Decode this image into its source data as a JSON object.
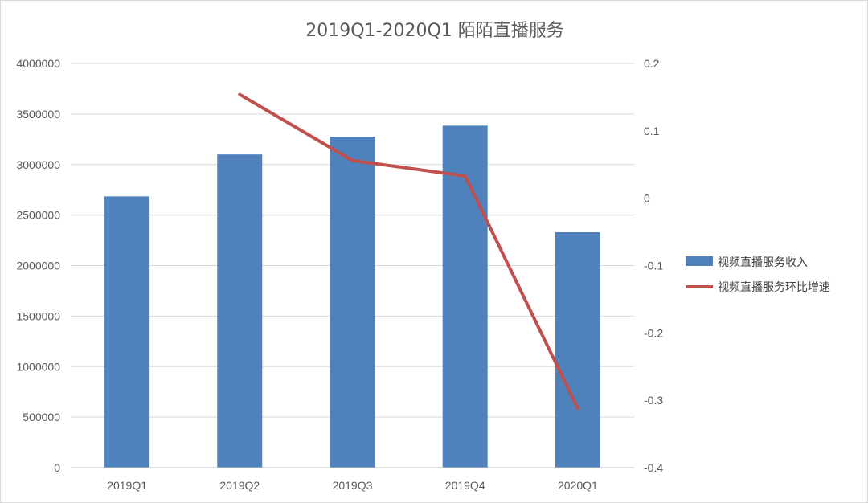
{
  "chart_data": {
    "type": "bar",
    "title": "2019Q1-2020Q1 陌陌直播服务",
    "categories": [
      "2019Q1",
      "2019Q2",
      "2019Q3",
      "2019Q4",
      "2020Q1"
    ],
    "series": [
      {
        "name": "视频直播服务收入",
        "type": "bar",
        "axis": "left",
        "color": "#4f81bd",
        "values": [
          2685000,
          3100000,
          3275000,
          3385000,
          2330000
        ]
      },
      {
        "name": "视频直播服务环比增速",
        "type": "line",
        "axis": "right",
        "color": "#c0504d",
        "values": [
          null,
          0.154,
          0.056,
          0.033,
          -0.312
        ]
      }
    ],
    "y_left": {
      "min": 0,
      "max": 4000000,
      "step": 500000
    },
    "y_right": {
      "min": -0.4,
      "max": 0.2,
      "step": 0.1
    },
    "grid": true,
    "legend_position": "right"
  }
}
